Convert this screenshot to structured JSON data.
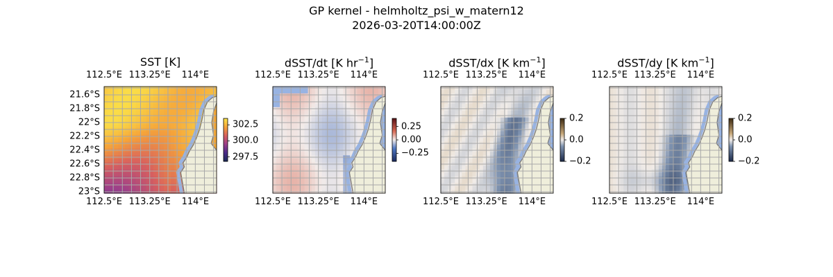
{
  "figure": {
    "title_line1": "GP kernel - helmholtz_psi_w_matern12",
    "title_line2": "2026-03-20T14:00:00Z"
  },
  "axes": {
    "lon_labels": [
      "112.5°E",
      "113.25°E",
      "114°E"
    ],
    "lon_values": [
      112.5,
      113.25,
      114.0
    ],
    "lat_labels": [
      "21.6°S",
      "21.8°S",
      "22°S",
      "22.2°S",
      "22.4°S",
      "22.6°S",
      "22.8°S",
      "23°S"
    ],
    "lat_values": [
      -21.6,
      -21.8,
      -22.0,
      -22.2,
      -22.4,
      -22.6,
      -22.8,
      -23.0
    ],
    "lon_range": [
      112.5,
      114.35
    ],
    "lat_range": [
      -23.02,
      -21.48
    ]
  },
  "panels": [
    {
      "id": "sst",
      "title": "SST [K]",
      "title_unit_sup": "",
      "title_tail": "",
      "colormap": "thermal",
      "colorbar_ticks": [
        "302.5",
        "300.0",
        "297.5"
      ],
      "colorbar_values": [
        302.5,
        300.0,
        297.5
      ],
      "colorbar_range": [
        296.8,
        303.5
      ],
      "show_lat_labels": true
    },
    {
      "id": "dsst_dt",
      "title": "dSST/dt [K hr",
      "title_unit_sup": "−1",
      "title_tail": "]",
      "colormap": "balance",
      "colorbar_ticks": [
        "0.25",
        "0.00",
        "−0.25"
      ],
      "colorbar_values": [
        0.25,
        0.0,
        -0.25
      ],
      "colorbar_range": [
        -0.4,
        0.4
      ],
      "show_lat_labels": false
    },
    {
      "id": "dsst_dx",
      "title": "dSST/dx [K km",
      "title_unit_sup": "−1",
      "title_tail": "]",
      "colormap": "diff",
      "colorbar_ticks": [
        "0.2",
        "0.0",
        "−0.2"
      ],
      "colorbar_values": [
        0.2,
        0.0,
        -0.2
      ],
      "colorbar_range": [
        -0.2,
        0.2
      ],
      "show_lat_labels": false
    },
    {
      "id": "dsst_dy",
      "title": "dSST/dy [K km",
      "title_unit_sup": "−1",
      "title_tail": "]",
      "colormap": "diff",
      "colorbar_ticks": [
        "0.2",
        "0.0",
        "−0.2"
      ],
      "colorbar_values": [
        0.2,
        0.0,
        -0.2
      ],
      "colorbar_range": [
        -0.2,
        0.2
      ],
      "show_lat_labels": false
    }
  ],
  "colors": {
    "land": "#efeedb",
    "coastline": "#7a7a7a",
    "missing_data": "#98b3e2",
    "gridline": "#a8a8a8"
  }
}
